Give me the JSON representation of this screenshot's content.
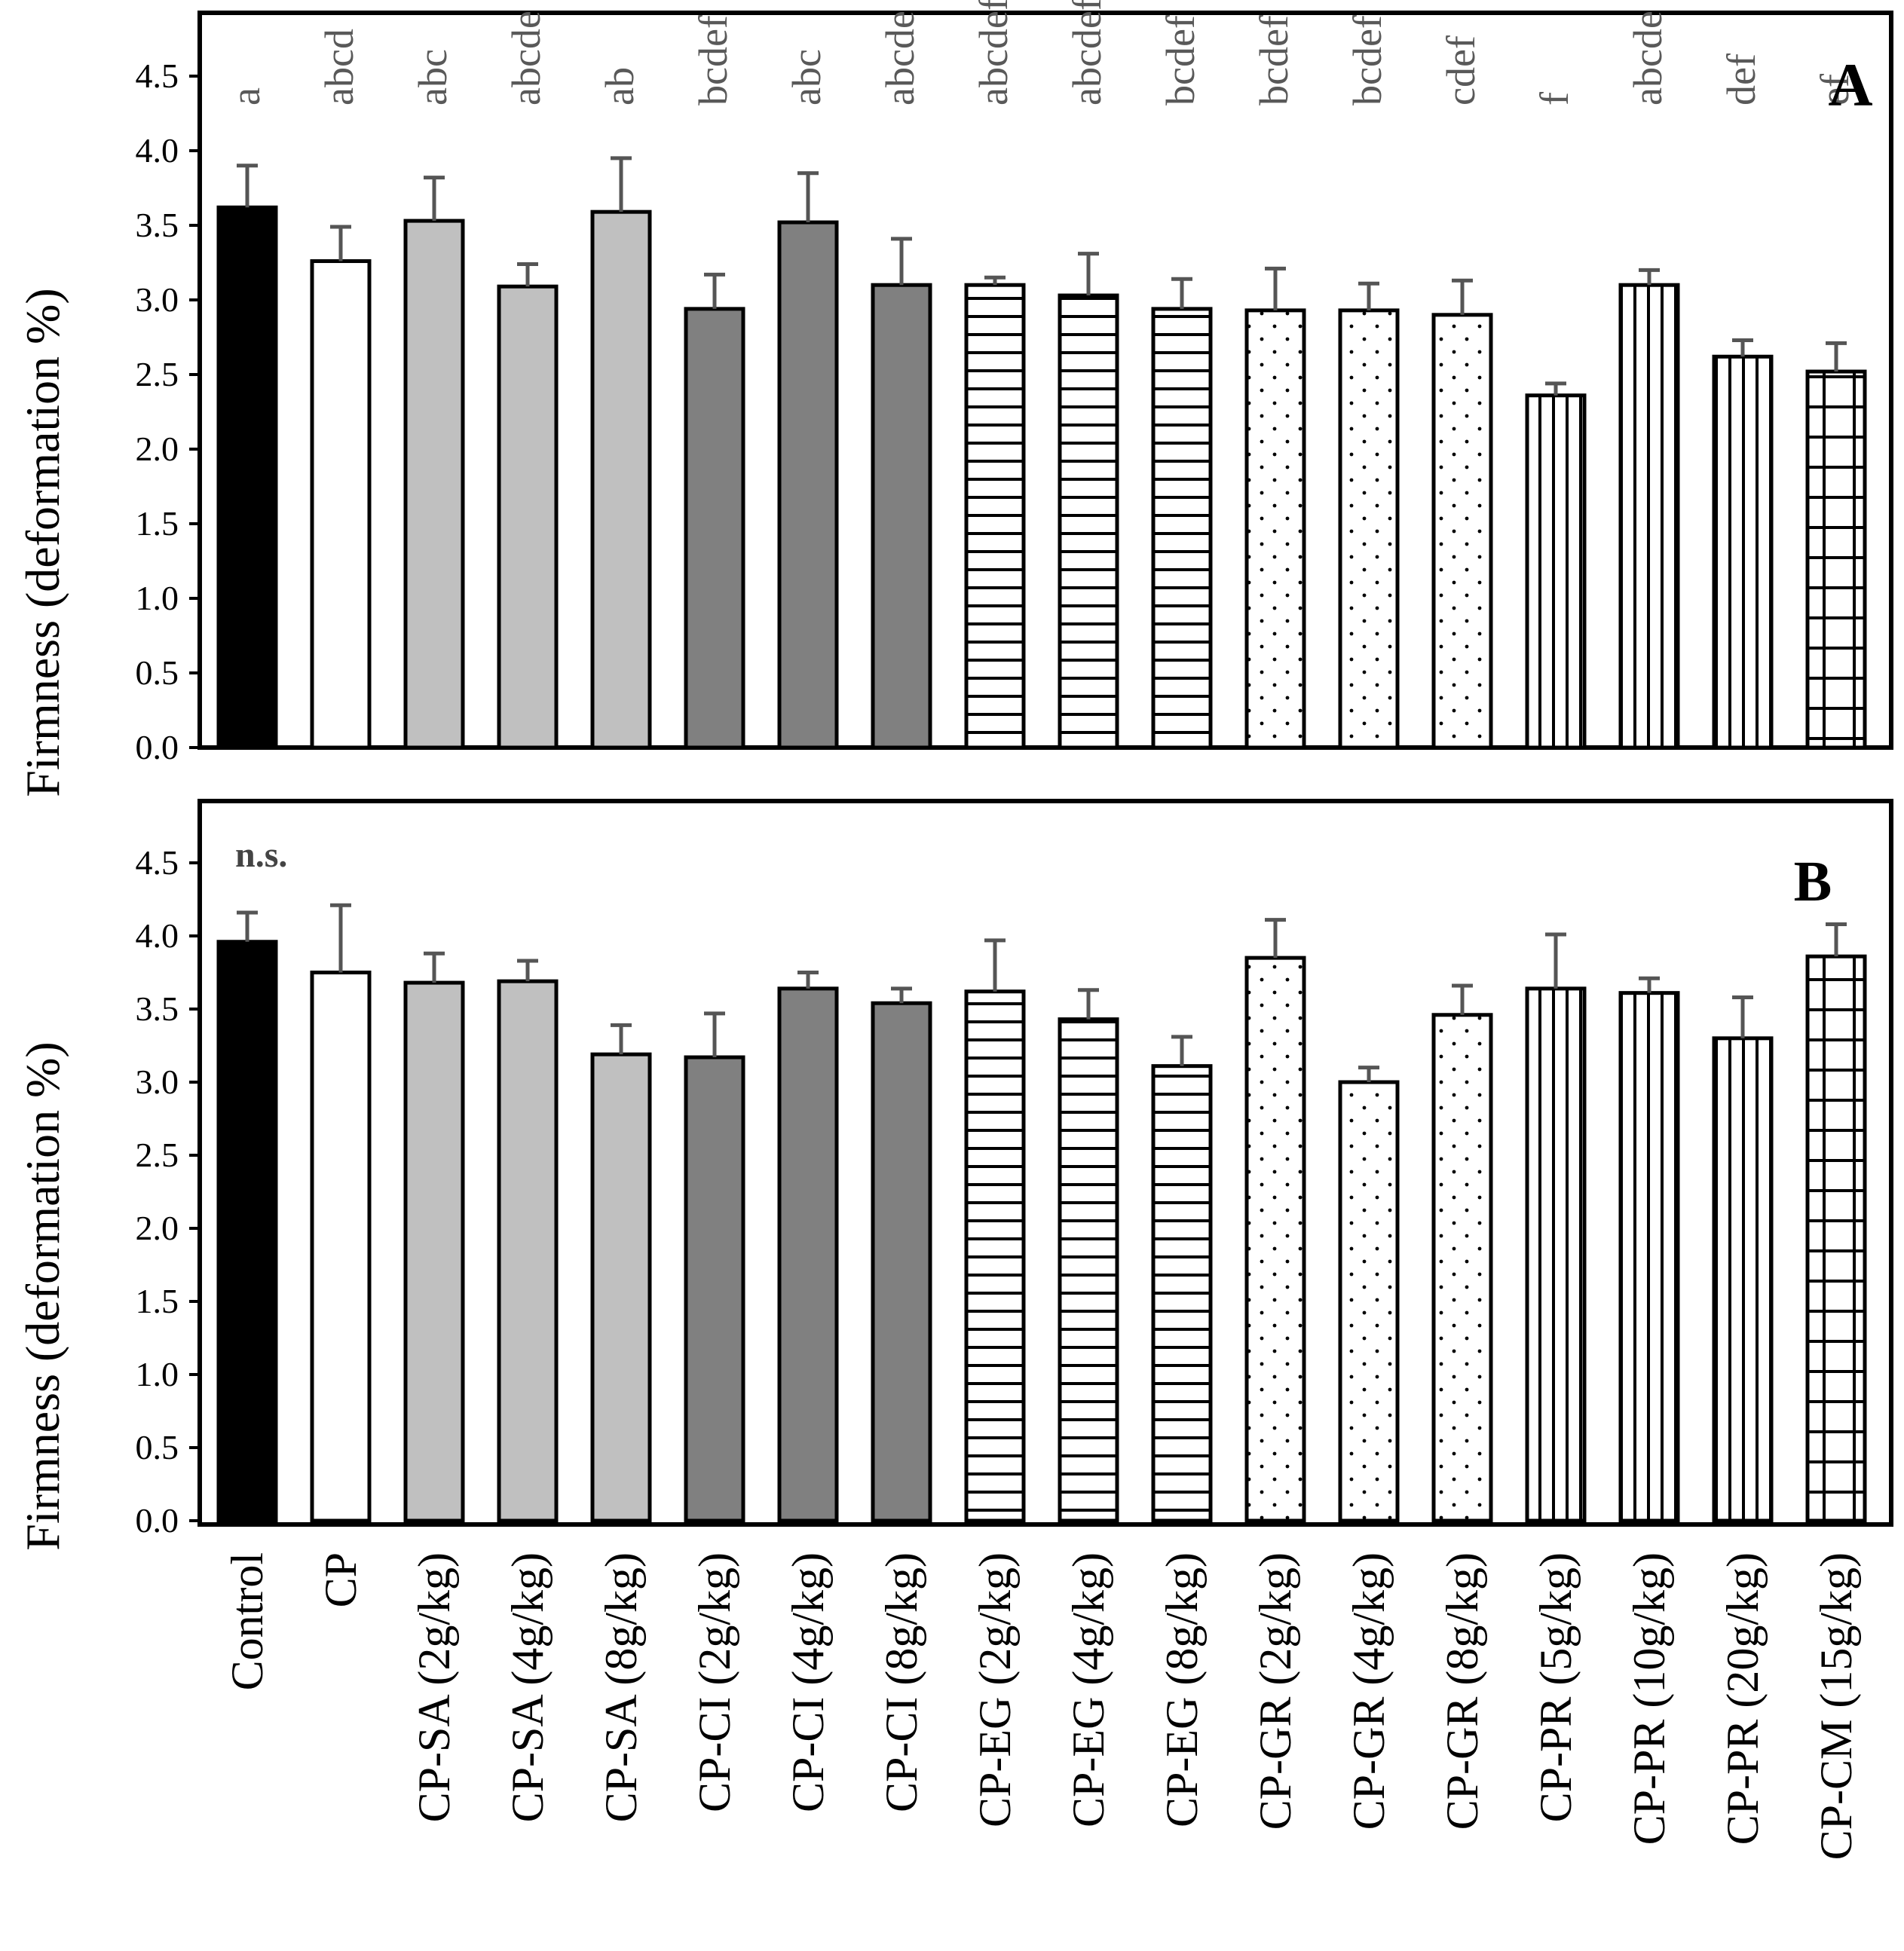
{
  "colors": {
    "control": "#000000",
    "cp": "#ffffff",
    "sa": "#c0c0c0",
    "ci": "#808080",
    "axis": "#000000",
    "error_bar": "#555555",
    "letters": "#595959"
  },
  "categories": [
    "Control",
    "CP",
    "CP-SA (2g/kg)",
    "CP-SA (4g/kg)",
    "CP-SA (8g/kg)",
    "CP-CI (2g/kg)",
    "CP-CI (4g/kg)",
    "CP-CI (8g/kg)",
    "CP-EG (2g/kg)",
    "CP-EG (4g/kg)",
    "CP-EG (8g/kg)",
    "CP-GR (2g/kg)",
    "CP-GR (4g/kg)",
    "CP-GR (8g/kg)",
    "CP-PR (5g/kg)",
    "CP-PR (10g/kg)",
    "CP-PR (20g/kg)",
    "CP-CM (15g/kg)"
  ],
  "fill_styles": [
    "black",
    "white",
    "lightgray",
    "lightgray",
    "lightgray",
    "darkgray",
    "darkgray",
    "darkgray",
    "hlines",
    "hlines",
    "hlines",
    "dots",
    "dots",
    "dots",
    "vlines",
    "vlines",
    "vlines",
    "grid"
  ],
  "chart_data": [
    {
      "type": "bar",
      "panel_label": "A",
      "ylabel": "Firmness (deformation %)",
      "ylim": [
        0,
        4.5
      ],
      "yticks": [
        "0.0",
        "0.5",
        "1.0",
        "1.5",
        "2.0",
        "2.5",
        "3.0",
        "3.5",
        "4.0",
        "4.5"
      ],
      "values": [
        3.62,
        3.26,
        3.53,
        3.09,
        3.59,
        2.94,
        3.52,
        3.1,
        3.1,
        3.03,
        2.94,
        2.93,
        2.93,
        2.9,
        2.36,
        3.1,
        2.62,
        2.52
      ],
      "errors": [
        0.28,
        0.23,
        0.29,
        0.15,
        0.36,
        0.23,
        0.33,
        0.31,
        0.05,
        0.28,
        0.2,
        0.28,
        0.18,
        0.23,
        0.08,
        0.1,
        0.11,
        0.19
      ],
      "annotations": [
        "a",
        "abcd",
        "abc",
        "abcde",
        "ab",
        "bcdef",
        "abc",
        "abcde",
        "abcdef",
        "abcdef",
        "bcdef",
        "bcdef",
        "bcdef",
        "cdef",
        "f",
        "abcde",
        "def",
        "ef"
      ]
    },
    {
      "type": "bar",
      "panel_label": "B",
      "note": "n.s.",
      "ylabel": "Firmness (deformation %)",
      "ylim": [
        0,
        4.5
      ],
      "yticks": [
        "0.0",
        "0.5",
        "1.0",
        "1.5",
        "2.0",
        "2.5",
        "3.0",
        "3.5",
        "4.0",
        "4.5"
      ],
      "values": [
        3.96,
        3.75,
        3.68,
        3.69,
        3.19,
        3.17,
        3.64,
        3.54,
        3.62,
        3.43,
        3.11,
        3.85,
        3.0,
        3.46,
        3.64,
        3.61,
        3.3,
        3.86
      ],
      "errors": [
        0.2,
        0.46,
        0.2,
        0.14,
        0.2,
        0.3,
        0.11,
        0.1,
        0.35,
        0.2,
        0.2,
        0.26,
        0.1,
        0.2,
        0.37,
        0.1,
        0.28,
        0.22
      ]
    }
  ]
}
